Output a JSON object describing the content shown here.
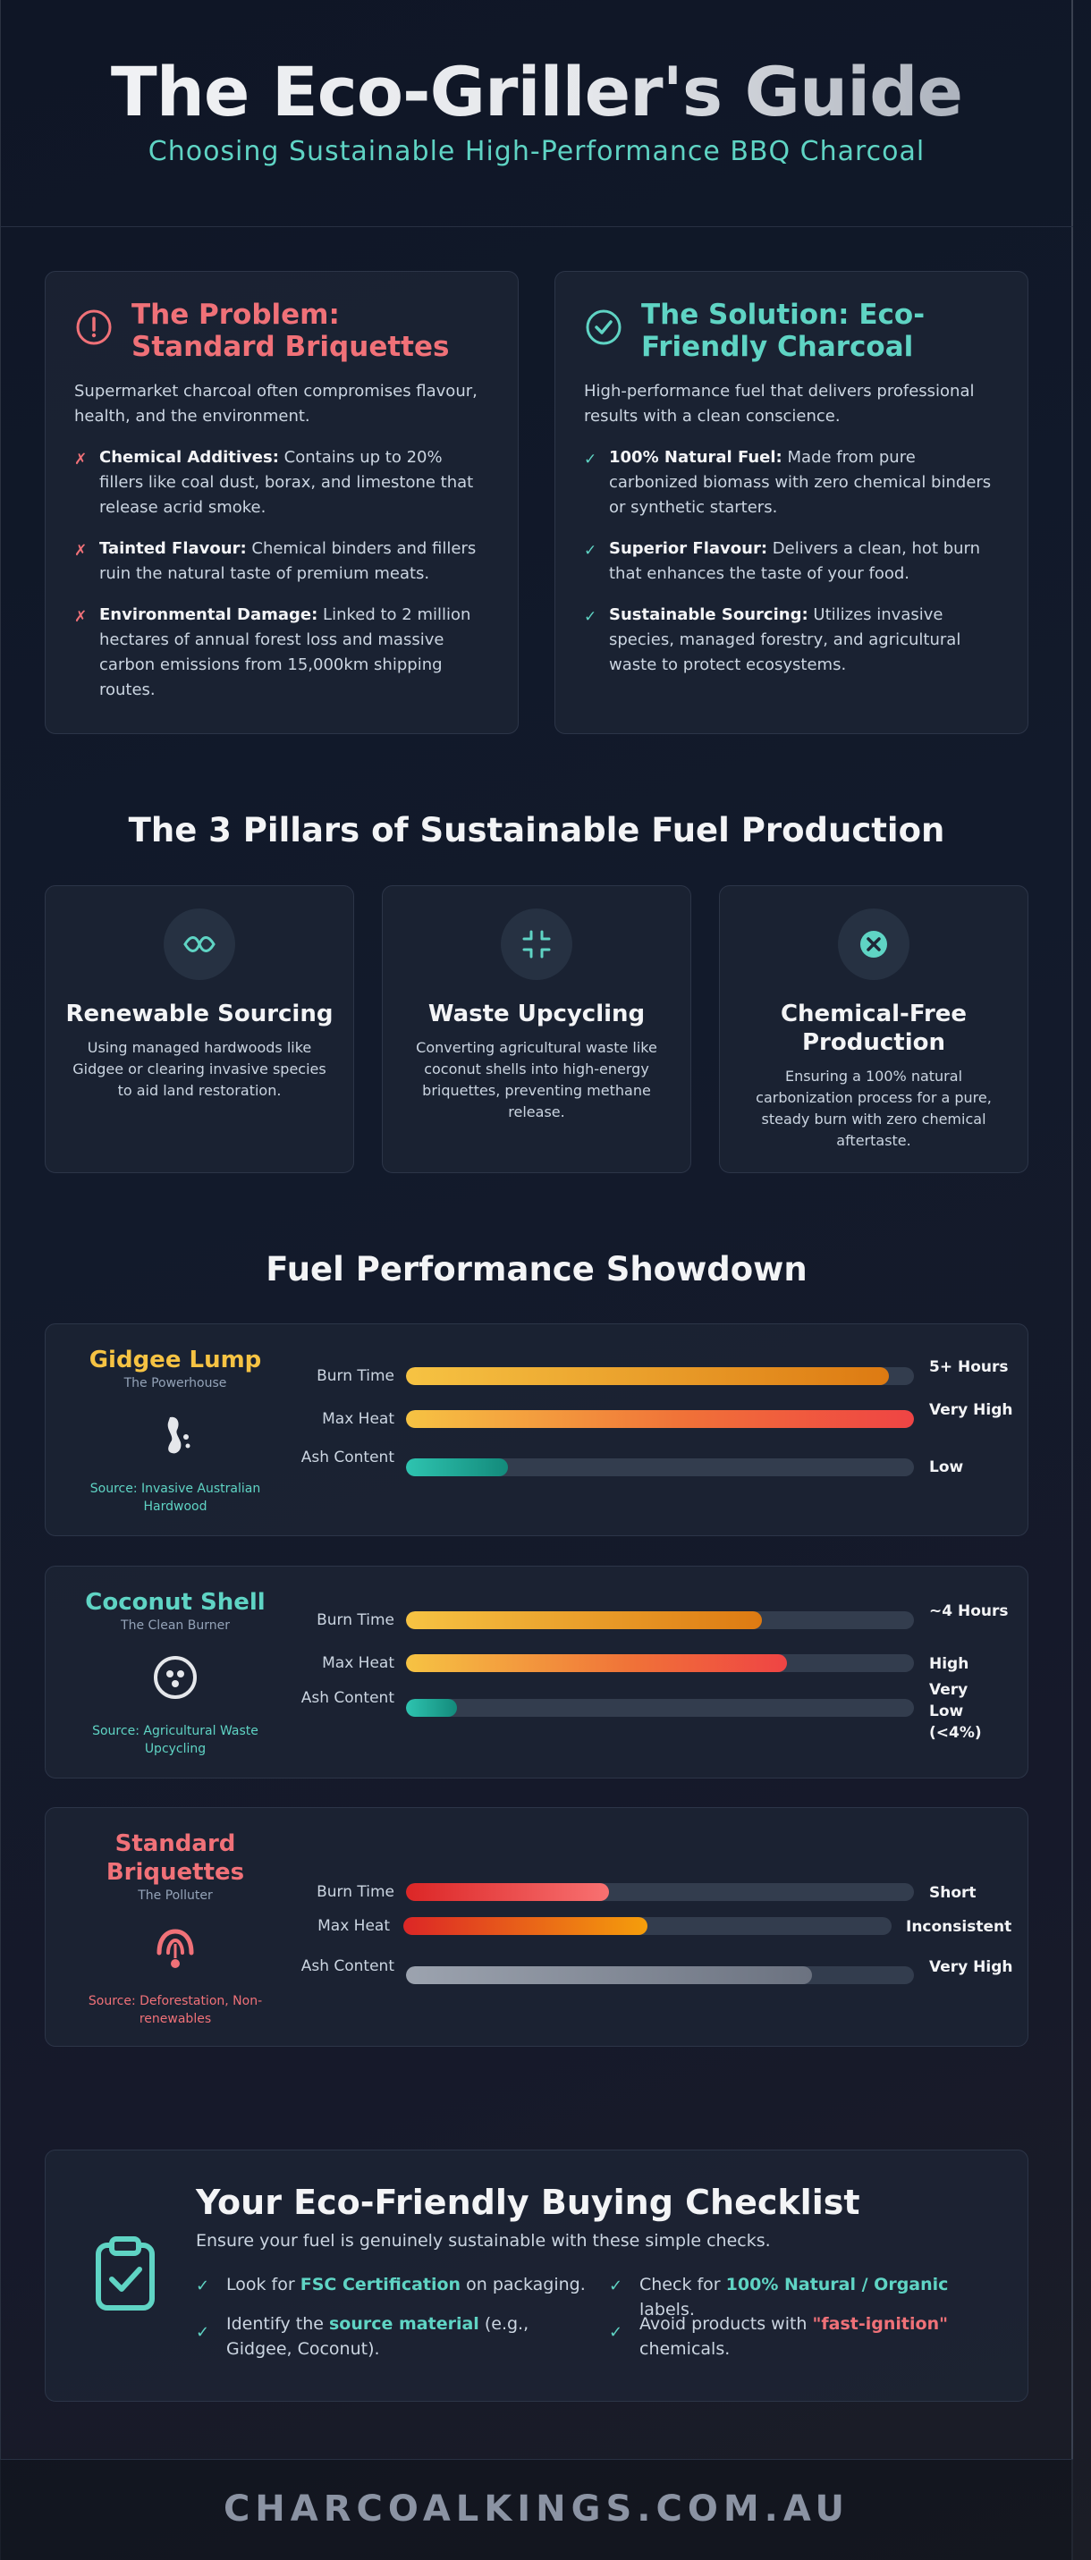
{
  "header": {
    "title": "The Eco-Griller's Guide",
    "subtitle": "Choosing Sustainable High-Performance BBQ Charcoal"
  },
  "problem": {
    "title": "The Problem: Standard Briquettes",
    "intro": "Supermarket charcoal often compromises flavour, health, and the environment.",
    "items": [
      {
        "bold": "Chemical Additives:",
        "text": " Contains up to 20% fillers like coal dust, borax, and limestone that release acrid smoke."
      },
      {
        "bold": "Tainted Flavour:",
        "text": " Chemical binders and fillers ruin the natural taste of premium meats."
      },
      {
        "bold": "Environmental Damage:",
        "text": " Linked to 2 million hectares of annual forest loss and massive carbon emissions from 15,000km shipping routes."
      }
    ],
    "mark": "✗",
    "color": "#f07178"
  },
  "solution": {
    "title": "The Solution: Eco-Friendly Charcoal",
    "intro": "High-performance fuel that delivers professional results with a clean conscience.",
    "items": [
      {
        "bold": "100% Natural Fuel:",
        "text": " Made from pure carbonized biomass with zero chemical binders or synthetic starters."
      },
      {
        "bold": "Superior Flavour:",
        "text": " Delivers a clean, hot burn that enhances the taste of your food."
      },
      {
        "bold": "Sustainable Sourcing:",
        "text": " Utilizes invasive species, managed forestry, and agricultural waste to protect ecosystems."
      }
    ],
    "mark": "✓",
    "color": "#5fd4c4"
  },
  "pillars": {
    "title": "The 3 Pillars of Sustainable Fuel Production",
    "items": [
      {
        "title": "Renewable Sourcing",
        "desc": "Using managed hardwoods like Gidgee or clearing invasive species to aid land restoration.",
        "icon": "tree-swap-icon"
      },
      {
        "title": "Waste Upcycling",
        "desc": "Converting agricultural waste like coconut shells into high-energy briquettes, preventing methane release.",
        "icon": "compress-icon"
      },
      {
        "title": "Chemical-Free Production",
        "desc": "Ensuring a 100% natural carbonization process for a pure, steady burn with zero chemical aftertaste.",
        "icon": "no-chemical-icon"
      }
    ]
  },
  "performance": {
    "title": "Fuel Performance Showdown",
    "labels": {
      "burn": "Burn Time",
      "heat": "Max Heat",
      "ash": "Ash Content"
    },
    "fuels": [
      {
        "name": "Gidgee Lump",
        "tag": "The Powerhouse",
        "source": "Source: Invasive Australian Hardwood",
        "name_color": "#f6c343",
        "source_color": "#5fd4c4",
        "icon": "wood-log-icon",
        "burn": {
          "value": 0.95,
          "label": "5+ Hours"
        },
        "heat": {
          "value": 1.0,
          "label": "Very High"
        },
        "ash": {
          "value": 0.2,
          "label": "Low"
        }
      },
      {
        "name": "Coconut Shell",
        "tag": "The Clean Burner",
        "source": "Source: Agricultural Waste Upcycling",
        "name_color": "#5fd4c4",
        "source_color": "#5fd4c4",
        "icon": "coconut-icon",
        "burn": {
          "value": 0.7,
          "label": "~4 Hours"
        },
        "heat": {
          "value": 0.75,
          "label": "High"
        },
        "ash": {
          "value": 0.1,
          "label": "Very Low (<4%)"
        }
      },
      {
        "name": "Standard Briquettes",
        "tag": "The Polluter",
        "source": "Source: Deforestation, Non-renewables",
        "name_color": "#f07178",
        "source_color": "#f07178",
        "icon": "smoke-hazard-icon",
        "burn": {
          "value": 0.4,
          "label": "Short"
        },
        "heat": {
          "value": 0.5,
          "label": "Inconsistent"
        },
        "ash": {
          "value": 0.8,
          "label": "Very High"
        }
      }
    ]
  },
  "checklist": {
    "title": "Your Eco-Friendly Buying Checklist",
    "subtitle": "Ensure your fuel is genuinely sustainable with these simple checks.",
    "items": [
      {
        "pre": "Look for ",
        "hl": "FSC Certification",
        "post": " on packaging.",
        "hl_color": "teal"
      },
      {
        "pre": "Check for ",
        "hl": "100% Natural / Organic",
        "post": " labels.",
        "hl_color": "teal"
      },
      {
        "pre": "Identify the ",
        "hl": "source material",
        "post": " (e.g., Gidgee, Coconut).",
        "hl_color": "teal"
      },
      {
        "pre": "Avoid products with ",
        "hl": "\"fast-ignition\"",
        "post": " chemicals.",
        "hl_color": "red"
      }
    ]
  },
  "footer": {
    "text": "CHARCOALKINGS.COM.AU"
  }
}
